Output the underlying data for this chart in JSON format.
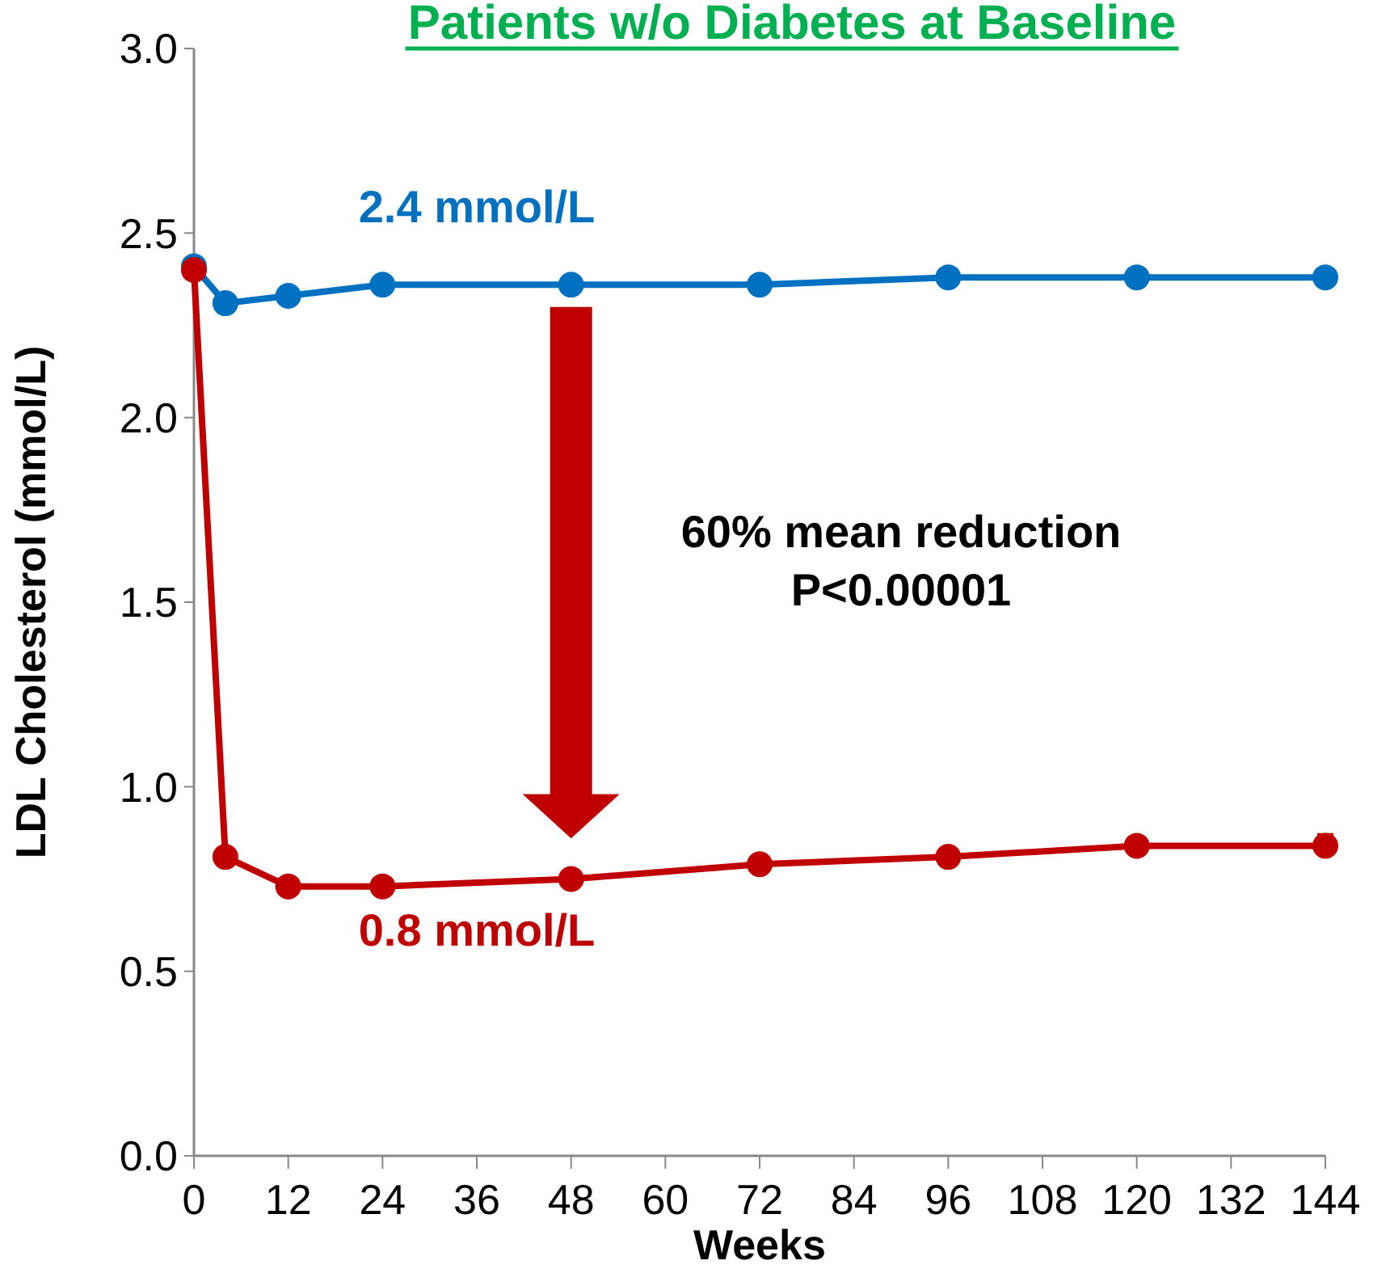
{
  "chart_data": {
    "type": "line",
    "title": "Patients w/o Diabetes at Baseline",
    "xlabel": "Weeks",
    "ylabel": "LDL Cholesterol (mmol/L)",
    "x": [
      0,
      4,
      12,
      24,
      48,
      72,
      96,
      120,
      144
    ],
    "series": [
      {
        "color": "#0070c0",
        "values": [
          2.41,
          2.31,
          2.33,
          2.36,
          2.36,
          2.36,
          2.38,
          2.38,
          2.38
        ]
      },
      {
        "color": "#c00000",
        "values": [
          2.4,
          0.81,
          0.73,
          0.73,
          0.75,
          0.79,
          0.81,
          0.84,
          0.84
        ],
        "errors": [
          null,
          null,
          null,
          null,
          null,
          null,
          null,
          null,
          0.03
        ]
      }
    ],
    "xlim": [
      0,
      144
    ],
    "xticks": [
      0,
      12,
      24,
      36,
      48,
      60,
      72,
      84,
      96,
      108,
      120,
      132,
      144
    ],
    "ylim": [
      0,
      3
    ],
    "yticks": [
      {
        "value": 0,
        "label": "0.0"
      },
      {
        "value": 0.5,
        "label": "0.5"
      },
      {
        "value": 1,
        "label": "1.0"
      },
      {
        "value": 1.5,
        "label": "1.5"
      },
      {
        "value": 2,
        "label": "2.0"
      },
      {
        "value": 2.5,
        "label": "2.5"
      },
      {
        "value": 3,
        "label": "3.0"
      }
    ],
    "marker": "circle",
    "grid": false,
    "annotations": [
      "2.4 mmol/L",
      "0.8 mmol/L",
      "60% mean reduction\nP<0.00001"
    ]
  }
}
